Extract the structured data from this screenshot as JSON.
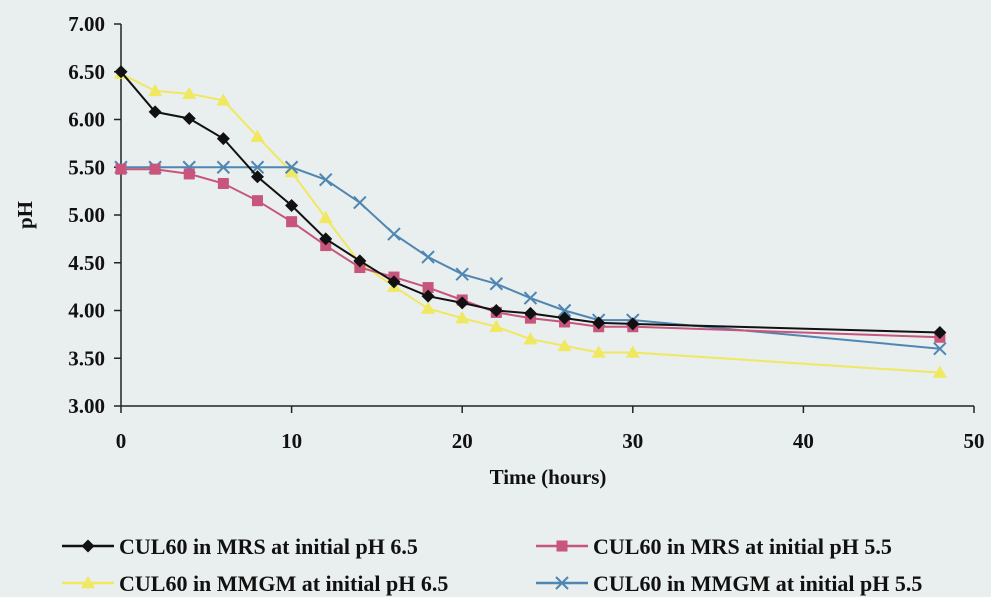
{
  "chart_data": {
    "type": "line",
    "xlabel": "Time (hours)",
    "ylabel": "pH",
    "xlim": [
      0,
      50
    ],
    "ylim": [
      3.0,
      7.0
    ],
    "x_ticks": [
      "0",
      "10",
      "20",
      "30",
      "40",
      "50"
    ],
    "y_ticks": [
      "3.00",
      "3.50",
      "4.00",
      "4.50",
      "5.00",
      "5.50",
      "6.00",
      "6.50",
      "7.00"
    ],
    "grid": false,
    "legend_position": "bottom",
    "series": [
      {
        "name": "CUL60 in MRS at initial pH 6.5",
        "color": "#111111",
        "marker": "diamond",
        "x": [
          0,
          2,
          4,
          6,
          8,
          10,
          12,
          14,
          16,
          18,
          20,
          22,
          24,
          26,
          28,
          30,
          48
        ],
        "y": [
          6.5,
          6.08,
          6.01,
          5.8,
          5.4,
          5.1,
          4.75,
          4.52,
          4.3,
          4.15,
          4.08,
          4.0,
          3.97,
          3.92,
          3.87,
          3.86,
          3.77
        ]
      },
      {
        "name": "CUL60 in MRS at initial pH 5.5",
        "color": "#c8557b",
        "marker": "square",
        "x": [
          0,
          2,
          4,
          6,
          8,
          10,
          12,
          14,
          16,
          18,
          20,
          22,
          24,
          26,
          28,
          30,
          48
        ],
        "y": [
          5.48,
          5.48,
          5.43,
          5.33,
          5.15,
          4.93,
          4.68,
          4.45,
          4.35,
          4.24,
          4.11,
          3.98,
          3.92,
          3.88,
          3.83,
          3.83,
          3.72
        ]
      },
      {
        "name": "CUL60 in MMGM at initial pH 6.5",
        "color": "#f0e860",
        "marker": "triangle",
        "x": [
          0,
          2,
          4,
          6,
          8,
          10,
          12,
          14,
          16,
          18,
          20,
          22,
          24,
          26,
          28,
          30,
          48
        ],
        "y": [
          6.48,
          6.3,
          6.27,
          6.2,
          5.82,
          5.45,
          4.97,
          4.5,
          4.25,
          4.02,
          3.92,
          3.83,
          3.7,
          3.63,
          3.56,
          3.56,
          3.35
        ]
      },
      {
        "name": "CUL60 in MMGM at initial pH 5.5",
        "color": "#4f86b2",
        "marker": "x",
        "x": [
          0,
          2,
          4,
          6,
          8,
          10,
          12,
          14,
          16,
          18,
          20,
          22,
          24,
          26,
          28,
          30,
          48
        ],
        "y": [
          5.5,
          5.5,
          5.5,
          5.5,
          5.5,
          5.5,
          5.37,
          5.13,
          4.8,
          4.56,
          4.38,
          4.28,
          4.13,
          4.0,
          3.9,
          3.9,
          3.6
        ]
      }
    ]
  }
}
